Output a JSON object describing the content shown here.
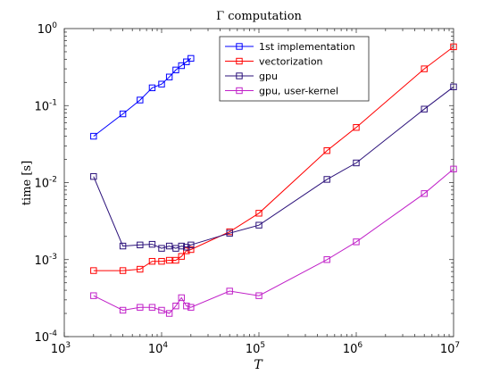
{
  "chart_data": {
    "type": "line",
    "title": "Γ computation",
    "xlabel": "T",
    "ylabel": "time [s]",
    "xscale": "log",
    "yscale": "log",
    "xlim": [
      1000,
      10000000
    ],
    "ylim": [
      0.0001,
      1
    ],
    "x_ticks": [
      {
        "value": 1000,
        "base": "10",
        "exp": "3"
      },
      {
        "value": 10000,
        "base": "10",
        "exp": "4"
      },
      {
        "value": 100000,
        "base": "10",
        "exp": "5"
      },
      {
        "value": 1000000,
        "base": "10",
        "exp": "6"
      },
      {
        "value": 10000000,
        "base": "10",
        "exp": "7"
      }
    ],
    "y_ticks": [
      {
        "value": 0.0001,
        "base": "10",
        "exp": "-4"
      },
      {
        "value": 0.001,
        "base": "10",
        "exp": "-3"
      },
      {
        "value": 0.01,
        "base": "10",
        "exp": "-2"
      },
      {
        "value": 0.1,
        "base": "10",
        "exp": "-1"
      },
      {
        "value": 1,
        "base": "10",
        "exp": "0"
      }
    ],
    "legend_position": "top-right",
    "grid": false,
    "series": [
      {
        "name": "1st implementation",
        "color": "#0000ff",
        "marker": "square",
        "x": [
          2000,
          4000,
          6000,
          8000,
          10000,
          12000,
          14000,
          16000,
          18000,
          20000
        ],
        "y": [
          0.04,
          0.078,
          0.118,
          0.17,
          0.19,
          0.235,
          0.29,
          0.33,
          0.37,
          0.41
        ]
      },
      {
        "name": "vectorization",
        "color": "#ff0000",
        "marker": "square",
        "x": [
          2000,
          4000,
          6000,
          8000,
          10000,
          12000,
          14000,
          16000,
          18000,
          20000,
          50000,
          100000,
          500000,
          1000000,
          5000000,
          10000000
        ],
        "y": [
          0.00072,
          0.00072,
          0.00075,
          0.00095,
          0.00095,
          0.00098,
          0.00098,
          0.0011,
          0.0013,
          0.00135,
          0.0023,
          0.004,
          0.026,
          0.052,
          0.3,
          0.58
        ]
      },
      {
        "name": "gpu",
        "color": "#2b117a",
        "marker": "square",
        "x": [
          2000,
          4000,
          6000,
          8000,
          10000,
          12000,
          14000,
          16000,
          18000,
          20000,
          50000,
          100000,
          500000,
          1000000,
          5000000,
          10000000
        ],
        "y": [
          0.012,
          0.0015,
          0.00155,
          0.00158,
          0.0014,
          0.0015,
          0.0014,
          0.0015,
          0.00145,
          0.00155,
          0.0022,
          0.0028,
          0.011,
          0.018,
          0.09,
          0.175
        ]
      },
      {
        "name": "gpu, user-kernel",
        "color": "#c020c8",
        "marker": "square",
        "x": [
          2000,
          4000,
          6000,
          8000,
          10000,
          12000,
          14000,
          16000,
          18000,
          20000,
          50000,
          100000,
          500000,
          1000000,
          5000000,
          10000000
        ],
        "y": [
          0.00034,
          0.00022,
          0.00024,
          0.00024,
          0.00022,
          0.0002,
          0.00025,
          0.00032,
          0.00025,
          0.00024,
          0.00039,
          0.00034,
          0.001,
          0.0017,
          0.0072,
          0.015
        ]
      }
    ]
  }
}
